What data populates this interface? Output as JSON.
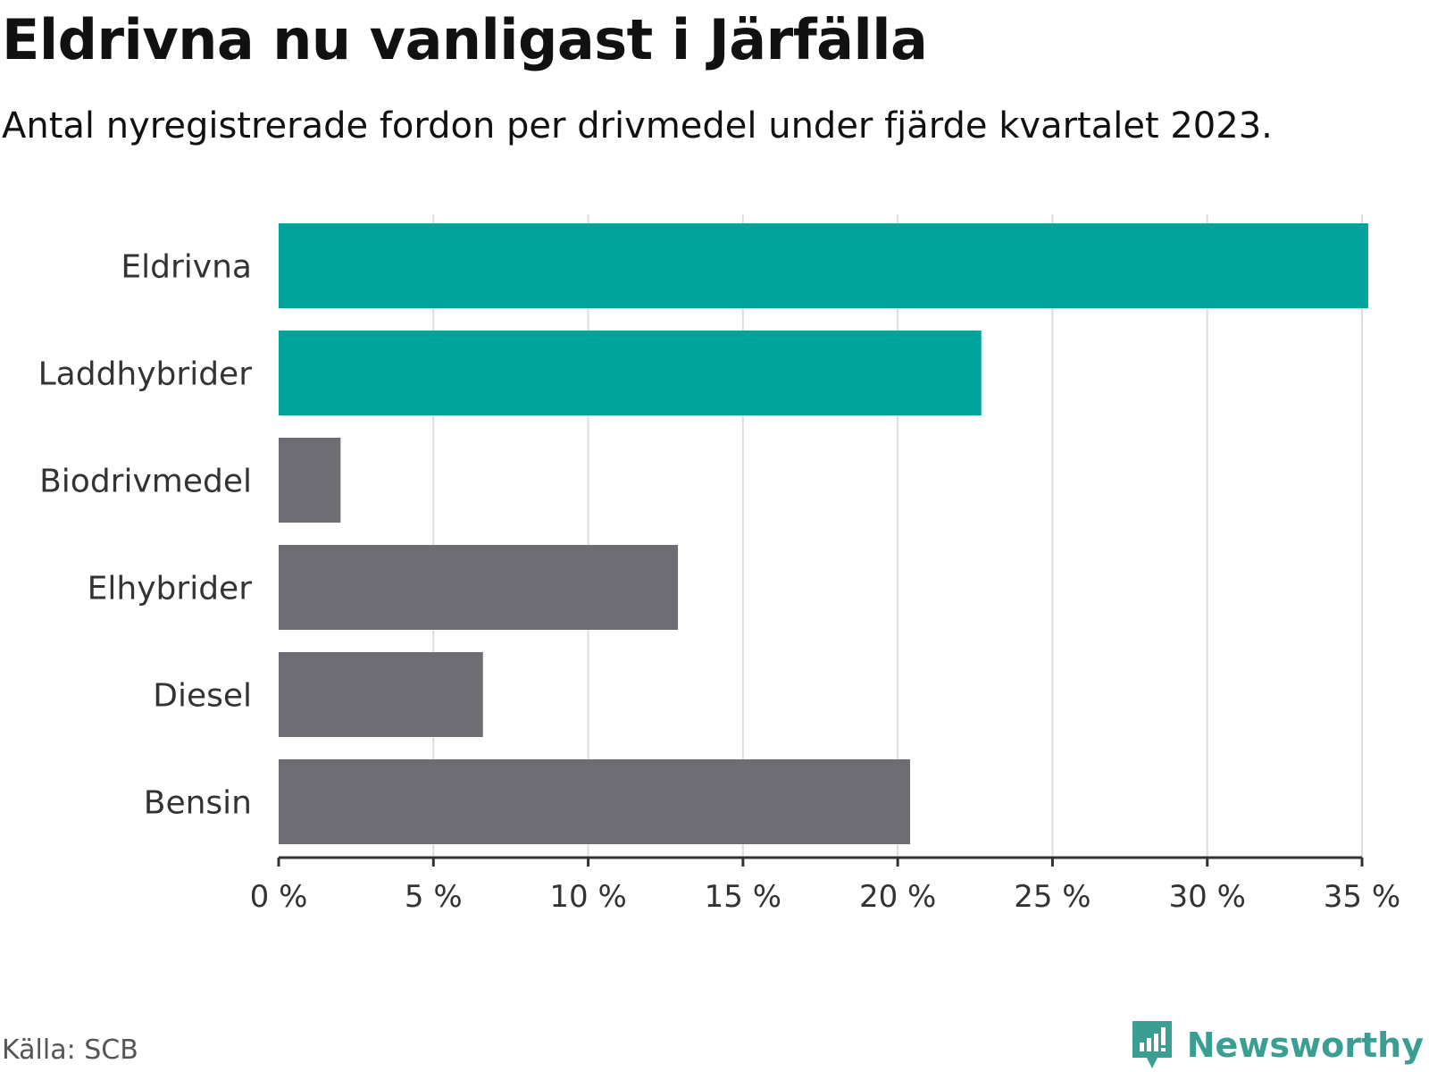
{
  "header": {
    "title": "Eldrivna nu vanligast i Järfälla",
    "subtitle": "Antal nyregistrerade fordon per drivmedel under fjärde kvartalet 2023."
  },
  "footer": {
    "source": "Källa: SCB",
    "brand": "Newsworthy",
    "brand_icon": "newsworthy-logo-icon"
  },
  "colors": {
    "highlight": "#00a49a",
    "default": "#6e6d73",
    "grid": "#dddddd",
    "axis": "#333333",
    "label": "#333333",
    "brand": "#3a9e92"
  },
  "chart_data": {
    "type": "bar",
    "orientation": "horizontal",
    "title": "Eldrivna nu vanligast i Järfälla",
    "subtitle": "Antal nyregistrerade fordon per drivmedel under fjärde kvartalet 2023.",
    "xlabel": "",
    "ylabel": "",
    "unit": "%",
    "xlim": [
      0,
      35
    ],
    "ticks": [
      0,
      5,
      10,
      15,
      20,
      25,
      30,
      35
    ],
    "tick_labels": [
      "0 %",
      "5 %",
      "10 %",
      "15 %",
      "20 %",
      "25 %",
      "30 %",
      "35 %"
    ],
    "grid": true,
    "categories": [
      "Eldrivna",
      "Laddhybrider",
      "Biodrivmedel",
      "Elhybrider",
      "Diesel",
      "Bensin"
    ],
    "values": [
      35.2,
      22.7,
      2.0,
      12.9,
      6.6,
      20.4
    ],
    "highlighted": [
      true,
      true,
      false,
      false,
      false,
      false
    ]
  }
}
